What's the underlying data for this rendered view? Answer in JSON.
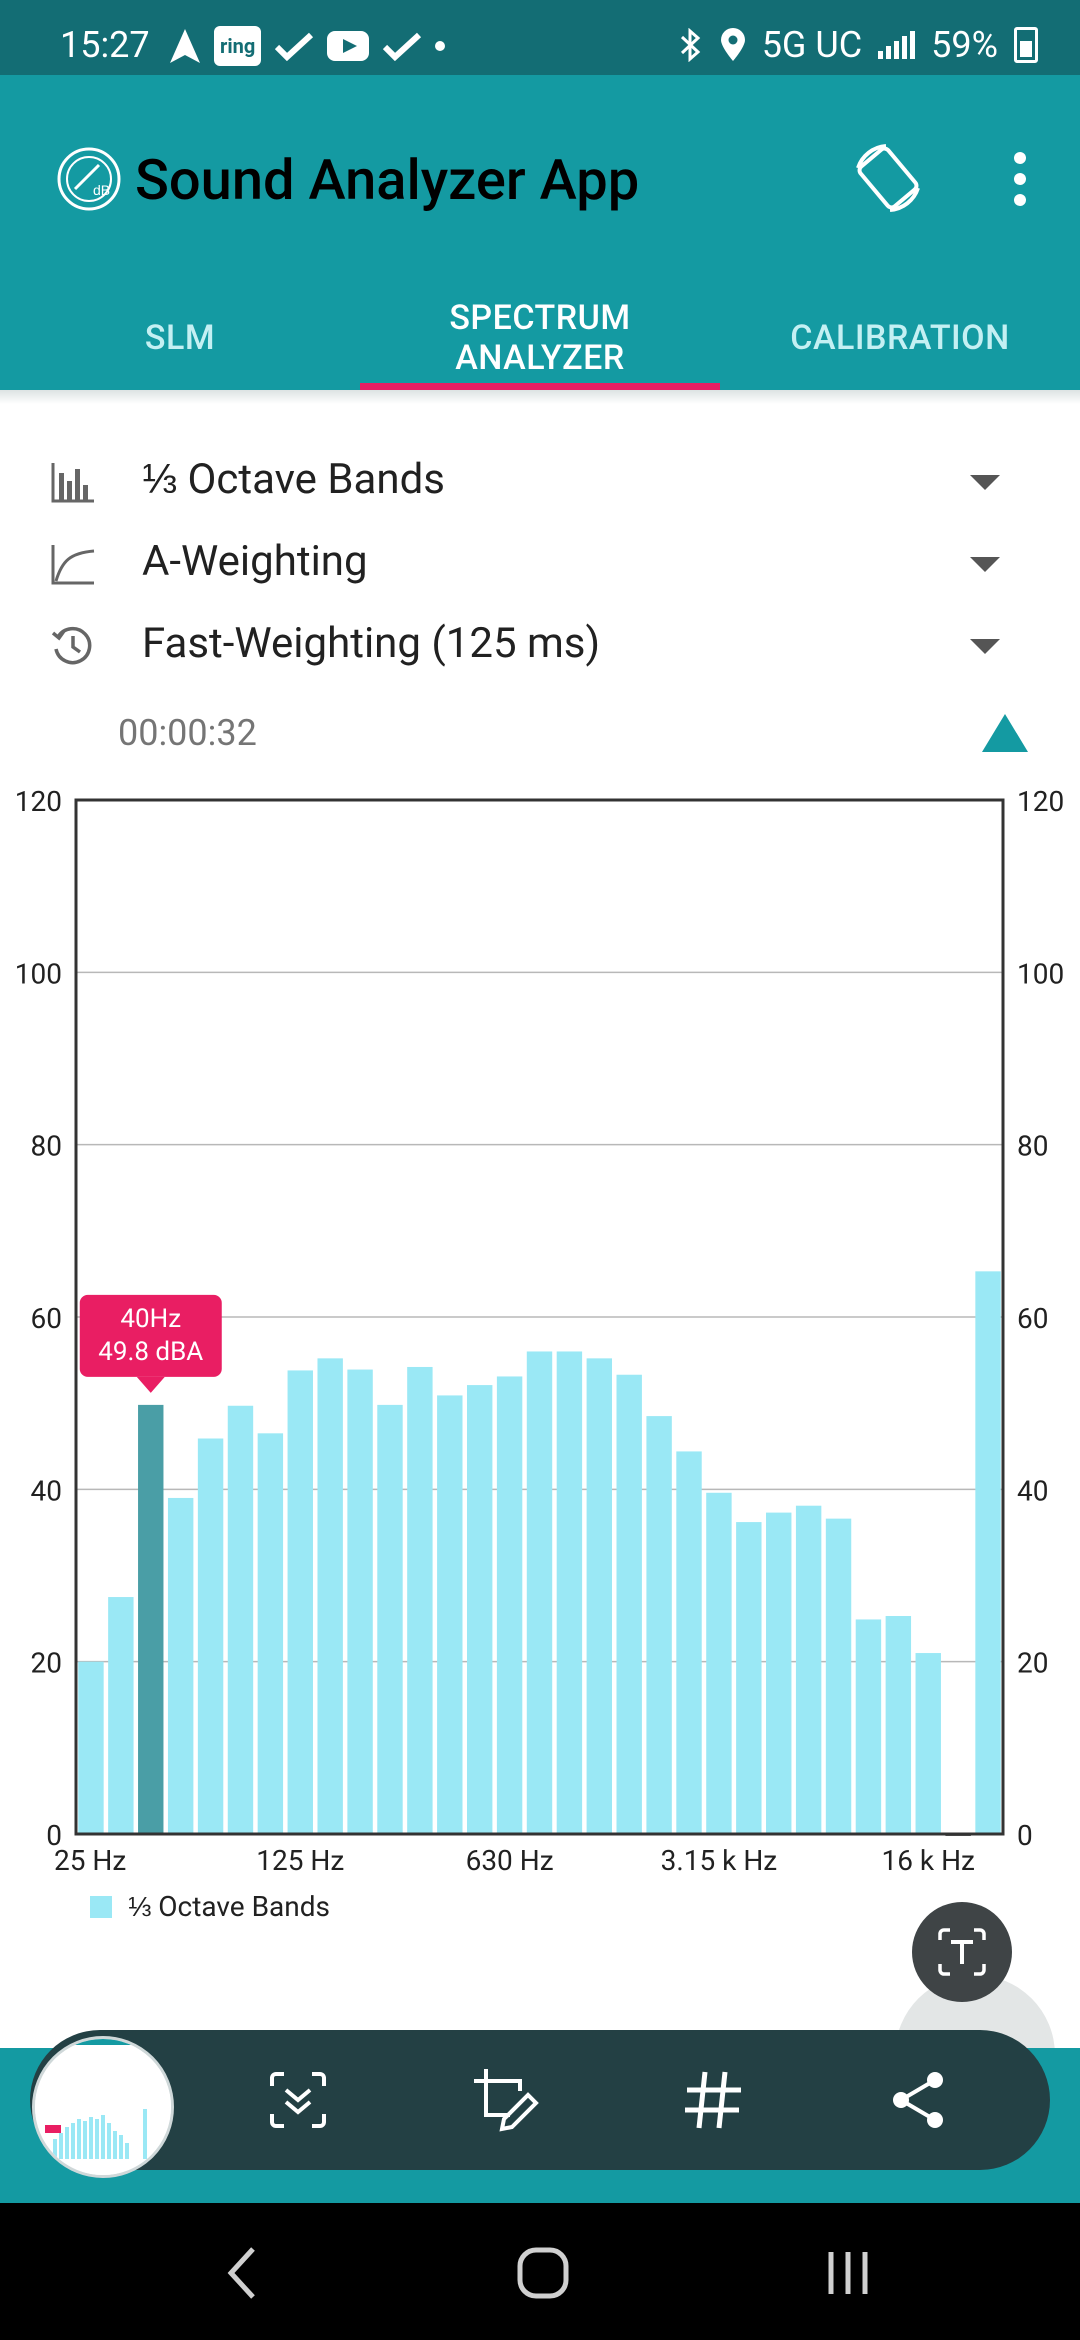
{
  "status_bar": {
    "time": "15:27",
    "ring_label": "ring",
    "network": "5G UC",
    "battery": "59%"
  },
  "app": {
    "title": "Sound Analyzer App",
    "logo_text": "dB"
  },
  "tabs": [
    {
      "label": "SLM",
      "active": false
    },
    {
      "label": "SPECTRUM ANALYZER",
      "label_line1": "SPECTRUM",
      "label_line2": "ANALYZER",
      "active": true
    },
    {
      "label": "CALIBRATION",
      "active": false
    }
  ],
  "selectors": {
    "bands": "⅓ Octave Bands",
    "weighting": "A-Weighting",
    "time_weighting": "Fast-Weighting (125 ms)"
  },
  "elapsed": "00:00:32",
  "chart_data": {
    "type": "bar",
    "title": "",
    "xlabel": "",
    "ylabel": "",
    "ylim": [
      0,
      120
    ],
    "y_ticks": [
      0,
      20,
      40,
      60,
      80,
      100,
      120
    ],
    "x_tick_labels": [
      "25 Hz",
      "125 Hz",
      "630 Hz",
      "3.15 k Hz",
      "16 k Hz"
    ],
    "x_tick_indices": [
      0,
      7,
      14,
      21,
      28
    ],
    "grid": true,
    "legend": "bottom-left",
    "series": [
      {
        "name": "⅓ Octave Bands",
        "color": "#9ae8f5",
        "highlight_color": "#4a9ea6",
        "values": [
          20.0,
          27.5,
          49.8,
          39.0,
          45.9,
          49.7,
          46.5,
          53.8,
          55.2,
          53.9,
          49.8,
          54.2,
          50.9,
          52.1,
          53.1,
          56.0,
          56.0,
          55.2,
          53.3,
          48.5,
          44.4,
          39.6,
          36.2,
          37.3,
          38.1,
          36.6,
          24.9,
          25.3,
          21.0,
          0.0,
          65.3
        ]
      }
    ],
    "tooltip": {
      "category_index": 2,
      "line1": "40Hz",
      "line2": "49.8 dBA",
      "color": "#e91e63"
    }
  },
  "legend": {
    "label": "⅓ Octave Bands"
  },
  "colors": {
    "status_bar": "#136d74",
    "app_bar": "#149aa2",
    "accent": "#e91e63",
    "bar": "#9ae8f5",
    "bar_selected": "#4a9ea6"
  },
  "capture_toolbar": {
    "icons": [
      "scroll-capture-icon",
      "crop-edit-icon",
      "hashtag-icon",
      "share-icon"
    ]
  }
}
